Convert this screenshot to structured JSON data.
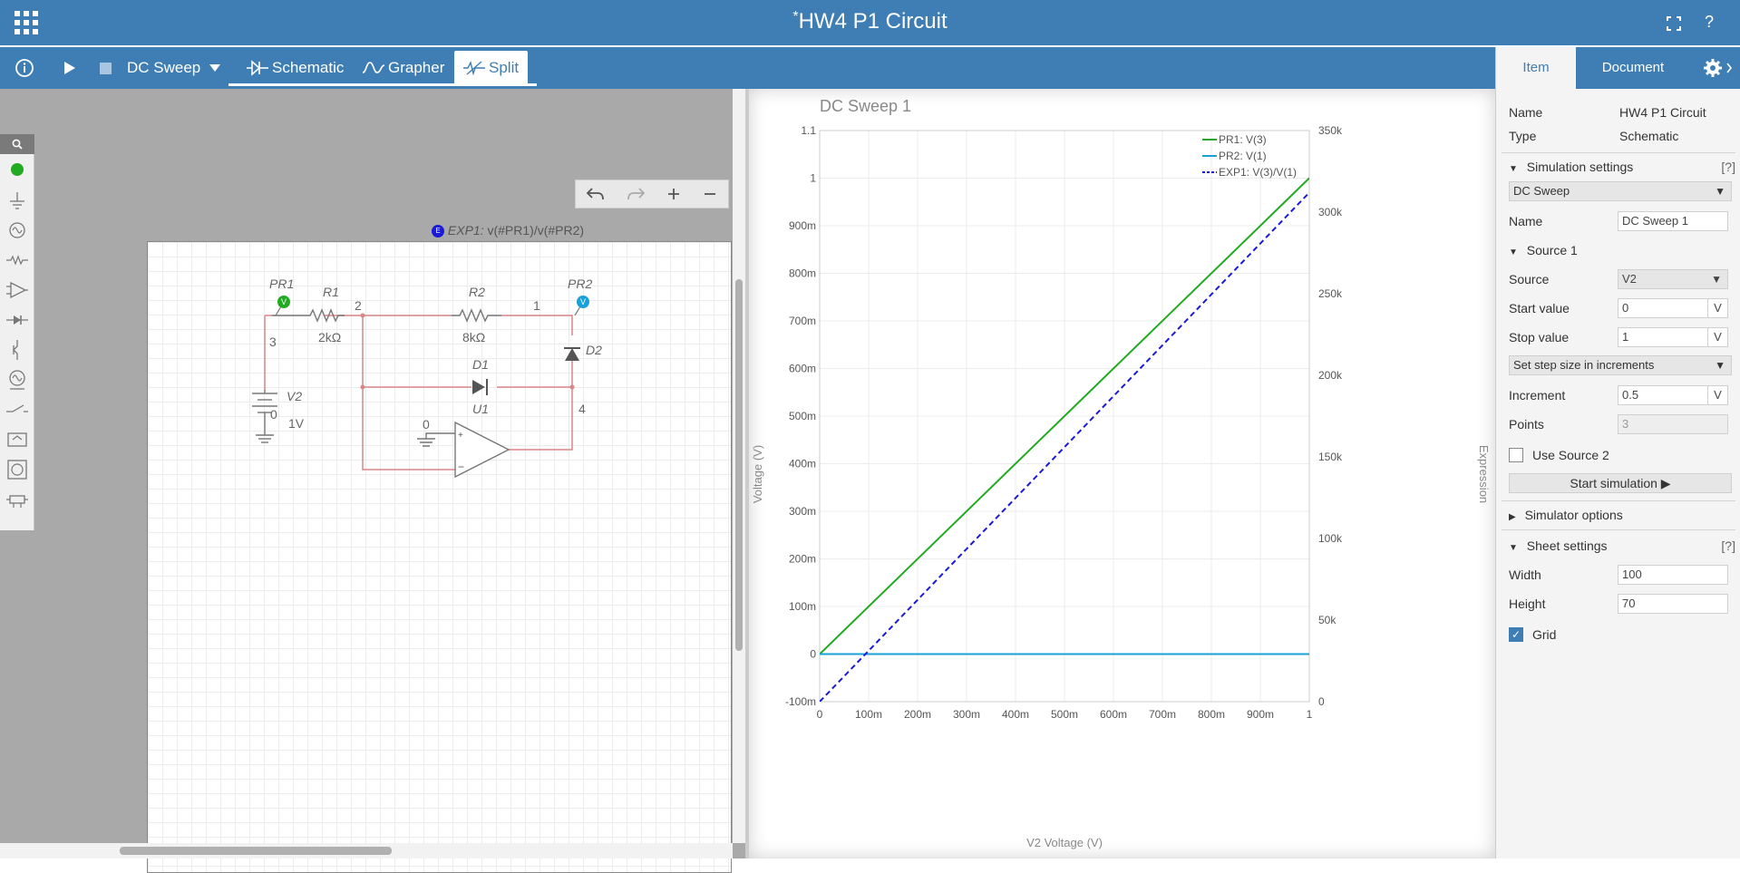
{
  "window": {
    "title": "HW4 P1 Circuit",
    "modified_marker": "*",
    "fullscreen_icon": "fullscreen-icon",
    "help_label": "?"
  },
  "toolbar": {
    "info_icon": "info-icon",
    "run_icon": "play-icon",
    "stop_icon": "stop-icon",
    "analysis": "DC Sweep",
    "tabs": [
      {
        "label": "Schematic",
        "icon": "schematic-icon"
      },
      {
        "label": "Grapher",
        "icon": "grapher-icon"
      },
      {
        "label": "Split",
        "icon": "split-icon",
        "active": true
      }
    ]
  },
  "schematic": {
    "expression_badge": "E",
    "expression_label": "EXP1:",
    "expression_value": "v(#PR1)/v(#PR2)",
    "components": {
      "pr1": "PR1",
      "r1": "R1",
      "r1_value": "2kΩ",
      "r2": "R2",
      "r2_value": "8kΩ",
      "pr2": "PR2",
      "d1": "D1",
      "d2": "D2",
      "v2": "V2",
      "v2_value": "1V",
      "u1": "U1"
    },
    "nodes": {
      "n1": "1",
      "n2": "2",
      "n3": "3",
      "n4": "4",
      "gnd_v2": "0",
      "gnd_u1": "0"
    },
    "probe_badge": "V"
  },
  "chart_data": {
    "type": "line",
    "title": "DC Sweep 1",
    "xlabel": "V2 Voltage (V)",
    "ylabel": "Voltage (V)",
    "y2label": "Expression",
    "x_ticks": [
      "0",
      "100m",
      "200m",
      "300m",
      "400m",
      "500m",
      "600m",
      "700m",
      "800m",
      "900m",
      "1"
    ],
    "y_ticks": [
      "-100m",
      "0",
      "100m",
      "200m",
      "300m",
      "400m",
      "500m",
      "600m",
      "700m",
      "800m",
      "900m",
      "1",
      "1.1"
    ],
    "y2_ticks": [
      "0",
      "50k",
      "100k",
      "150k",
      "200k",
      "250k",
      "300k",
      "350k"
    ],
    "xlim": [
      0,
      1
    ],
    "ylim": [
      -0.1,
      1.1
    ],
    "y2lim": [
      0,
      350000
    ],
    "grid": true,
    "legend_position": "top-right",
    "series": [
      {
        "name": "PR1: V(3)",
        "x": [
          0,
          0.5,
          1
        ],
        "y": [
          0,
          0.5,
          1
        ],
        "color": "#22aa22",
        "dash": false,
        "axis": "left"
      },
      {
        "name": "PR2: V(1)",
        "x": [
          0,
          0.5,
          1
        ],
        "y": [
          0,
          0,
          0
        ],
        "color": "#1aa0d8",
        "dash": false,
        "axis": "left"
      },
      {
        "name": "EXP1: V(3)/V(1)",
        "x": [
          0,
          0.5,
          1
        ],
        "y": [
          0,
          156000,
          312000
        ],
        "color": "#1a1ad8",
        "dash": true,
        "axis": "right"
      }
    ]
  },
  "panel": {
    "tabs": [
      "Item",
      "Document"
    ],
    "settings_icon": "gear-icon",
    "name_label": "Name",
    "name_value": "HW4 P1 Circuit",
    "type_label": "Type",
    "type_value": "Schematic",
    "sim_settings_label": "Simulation settings",
    "help_label": "[?]",
    "analysis_select": "DC Sweep",
    "sim_name_label": "Name",
    "sim_name_value": "DC Sweep 1",
    "source1_label": "Source 1",
    "source_label": "Source",
    "source_value": "V2",
    "start_label": "Start value",
    "start_value": "0",
    "start_unit": "V",
    "stop_label": "Stop value",
    "stop_value": "1",
    "stop_unit": "V",
    "step_mode": "Set step size in increments",
    "increment_label": "Increment",
    "increment_value": "0.5",
    "increment_unit": "V",
    "points_label": "Points",
    "points_value": "3",
    "use_source2_label": "Use Source 2",
    "start_sim_label": "Start simulation ▶",
    "sim_options_label": "Simulator options",
    "sheet_settings_label": "Sheet settings",
    "width_label": "Width",
    "width_value": "100",
    "height_label": "Height",
    "height_value": "70",
    "grid_label": "Grid"
  }
}
